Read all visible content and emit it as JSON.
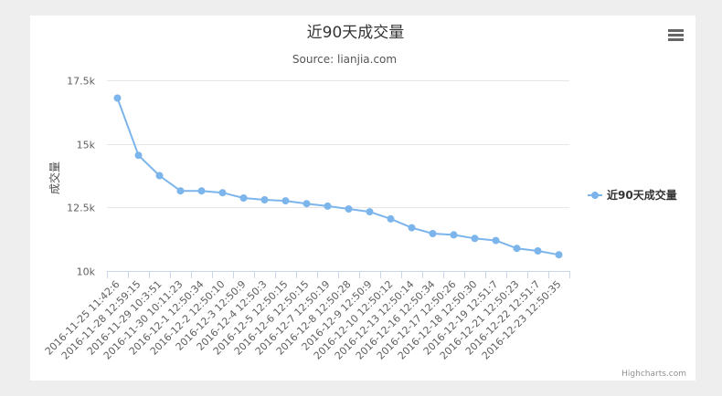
{
  "chart_data": {
    "type": "line",
    "title": "近90天成交量",
    "subtitle": "Source: lianjia.com",
    "ylabel": "成交量",
    "xlabel": "",
    "ylim": [
      10000,
      17500
    ],
    "yticks": [
      10000,
      12500,
      15000,
      17500
    ],
    "ytick_labels": [
      "10k",
      "12.5k",
      "15k",
      "17.5k"
    ],
    "grid": true,
    "legend_position": "right",
    "categories": [
      "2016-11-25 11:42:6",
      "2016-11-28 12:59:15",
      "2016-11-29 10:3:51",
      "2016-11-30 10:11:23",
      "2016-12-1 12:50:34",
      "2016-12-2 12:50:10",
      "2016-12-3 12:50:9",
      "2016-12-4 12:50:3",
      "2016-12-5 12:50:15",
      "2016-12-6 12:50:15",
      "2016-12-7 12:50:19",
      "2016-12-8 12:50:28",
      "2016-12-9 12:50:9",
      "2016-12-10 12:50:12",
      "2016-12-13 12:50:14",
      "2016-12-16 12:50:34",
      "2016-12-17 12:50:26",
      "2016-12-18 12:50:30",
      "2016-12-19 12:51:7",
      "2016-12-21 12:50:23",
      "2016-12-22 12:51:7",
      "2016-12-23 12:50:35"
    ],
    "series": [
      {
        "name": "近90天成交量",
        "color": "#7cb5ec",
        "values": [
          16800,
          14550,
          13750,
          13150,
          13150,
          13080,
          12870,
          12800,
          12760,
          12650,
          12550,
          12440,
          12330,
          12050,
          11700,
          11470,
          11420,
          11280,
          11200,
          10890,
          10790,
          10640
        ]
      }
    ]
  },
  "credit": "Highcharts.com",
  "menu_icon": "hamburger-menu-icon"
}
